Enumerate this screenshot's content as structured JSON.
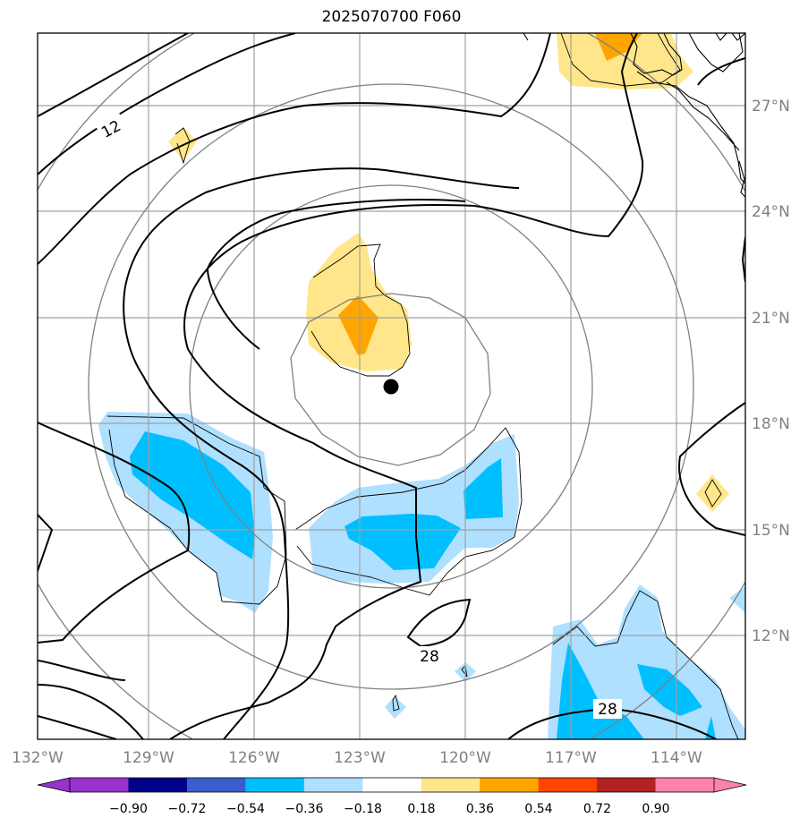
{
  "title": "2025070700 F060",
  "lon_labels": [
    "132°W",
    "129°W",
    "126°W",
    "123°W",
    "120°W",
    "117°W",
    "114°W"
  ],
  "lat_labels": [
    "27°N",
    "24°N",
    "21°N",
    "18°N",
    "15°N",
    "12°N"
  ],
  "contour_labels": [
    "12",
    "28",
    "28"
  ],
  "colorbar": {
    "ticks": [
      "−0.90",
      "−0.72",
      "−0.54",
      "−0.36",
      "−0.18",
      "0.18",
      "0.36",
      "0.54",
      "0.72",
      "0.90"
    ],
    "colors": [
      "#9932cc",
      "#00008b",
      "#3a5fcd",
      "#00bfff",
      "#b0e0ff",
      "#ffffff",
      "#ffe68a",
      "#ffa500",
      "#ff4500",
      "#b22222"
    ],
    "under_color": "#9932cc",
    "over_color": "#ff82ab"
  },
  "storm_center": {
    "lon": "122.2°W",
    "lat": "19.0°N"
  },
  "colors": {
    "frame": "#000000",
    "grid": "#a0a0a0",
    "range_rings": "#808080",
    "contours": "#000000",
    "coast": "#000000"
  }
}
